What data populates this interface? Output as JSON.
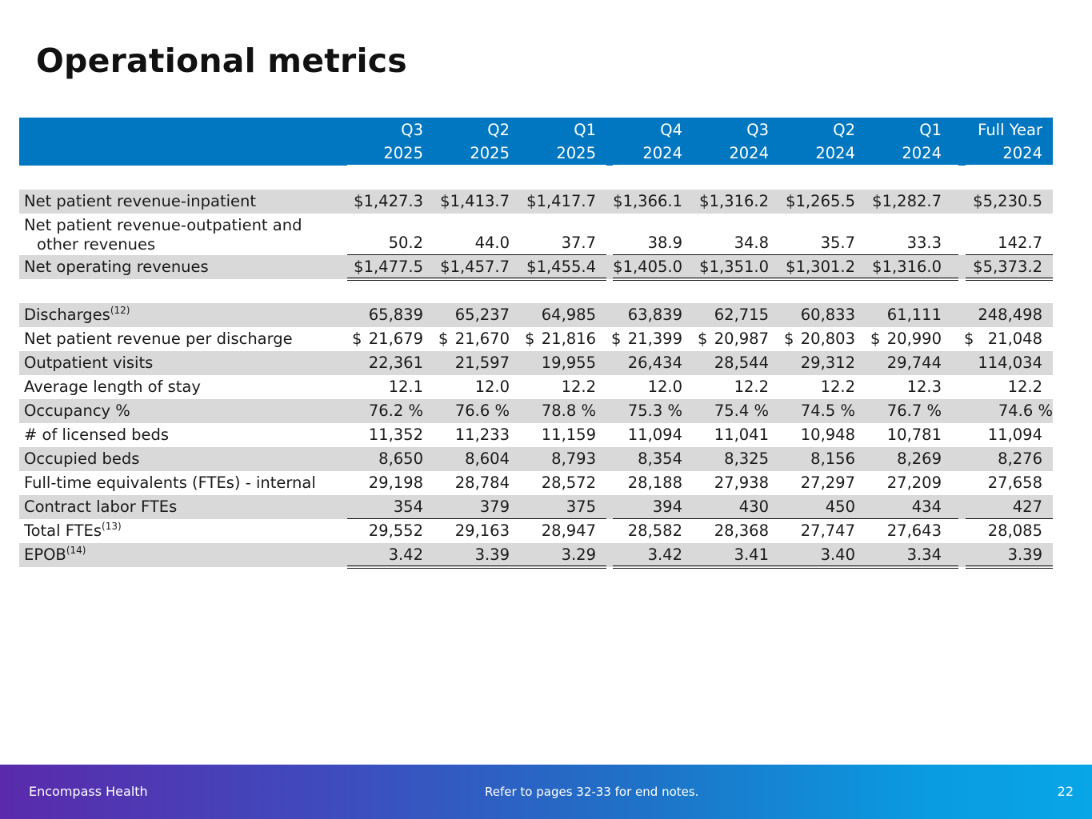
{
  "title": "Operational metrics",
  "columns": [
    {
      "period": "Q3",
      "year": "2025"
    },
    {
      "period": "Q2",
      "year": "2025"
    },
    {
      "period": "Q1",
      "year": "2025"
    },
    {
      "period": "Q4",
      "year": "2024"
    },
    {
      "period": "Q3",
      "year": "2024"
    },
    {
      "period": "Q2",
      "year": "2024"
    },
    {
      "period": "Q1",
      "year": "2024"
    },
    {
      "period": "Full Year",
      "year": "2024"
    }
  ],
  "rows": [
    {
      "label": "Net patient revenue-inpatient",
      "values": [
        "$1,427.3",
        "$1,413.7",
        "$1,417.7",
        "$1,366.1",
        "$1,316.2",
        "$1,265.5",
        "$1,282.7",
        "$5,230.5"
      ]
    },
    {
      "label": "Net patient revenue-outpatient and",
      "label_cont": "other revenues",
      "values": [
        "50.2",
        "44.0",
        "37.7",
        "38.9",
        "34.8",
        "35.7",
        "33.3",
        "142.7"
      ]
    },
    {
      "label": "Net operating revenues",
      "values": [
        "$1,477.5",
        "$1,457.7",
        "$1,455.4",
        "$1,405.0",
        "$1,351.0",
        "$1,301.2",
        "$1,316.0",
        "$5,373.2"
      ]
    },
    {
      "label": "Discharges",
      "sup": "(12)",
      "values": [
        "65,839",
        "65,237",
        "64,985",
        "63,839",
        "62,715",
        "60,833",
        "61,111",
        "248,498"
      ]
    },
    {
      "label": "Net patient revenue per discharge",
      "dollar": "$",
      "values": [
        "21,679",
        "21,670",
        "21,816",
        "21,399",
        "20,987",
        "20,803",
        "20,990",
        "21,048"
      ]
    },
    {
      "label": "Outpatient visits",
      "values": [
        "22,361",
        "21,597",
        "19,955",
        "26,434",
        "28,544",
        "29,312",
        "29,744",
        "114,034"
      ]
    },
    {
      "label": "Average length of stay",
      "values": [
        "12.1",
        "12.0",
        "12.2",
        "12.0",
        "12.2",
        "12.2",
        "12.3",
        "12.2"
      ]
    },
    {
      "label": "Occupancy %",
      "values": [
        "76.2 %",
        "76.6 %",
        "78.8 %",
        "75.3 %",
        "75.4 %",
        "74.5 %",
        "76.7 %",
        "74.6 %"
      ]
    },
    {
      "label": "# of licensed beds",
      "values": [
        "11,352",
        "11,233",
        "11,159",
        "11,094",
        "11,041",
        "10,948",
        "10,781",
        "11,094"
      ]
    },
    {
      "label": "Occupied beds",
      "values": [
        "8,650",
        "8,604",
        "8,793",
        "8,354",
        "8,325",
        "8,156",
        "8,269",
        "8,276"
      ]
    },
    {
      "label": "Full-time equivalents (FTEs) - internal",
      "values": [
        "29,198",
        "28,784",
        "28,572",
        "28,188",
        "27,938",
        "27,297",
        "27,209",
        "27,658"
      ]
    },
    {
      "label": "Contract labor FTEs",
      "values": [
        "354",
        "379",
        "375",
        "394",
        "430",
        "450",
        "434",
        "427"
      ]
    },
    {
      "label": "Total FTEs",
      "sup": "(13)",
      "values": [
        "29,552",
        "29,163",
        "28,947",
        "28,582",
        "28,368",
        "27,747",
        "27,643",
        "28,085"
      ]
    },
    {
      "label": "EPOB",
      "sup": "(14)",
      "values": [
        "3.42",
        "3.39",
        "3.29",
        "3.42",
        "3.41",
        "3.40",
        "3.34",
        "3.39"
      ]
    }
  ],
  "footer": {
    "org": "Encompass Health",
    "note": "Refer to pages 32-33 for end notes.",
    "page": "22"
  }
}
